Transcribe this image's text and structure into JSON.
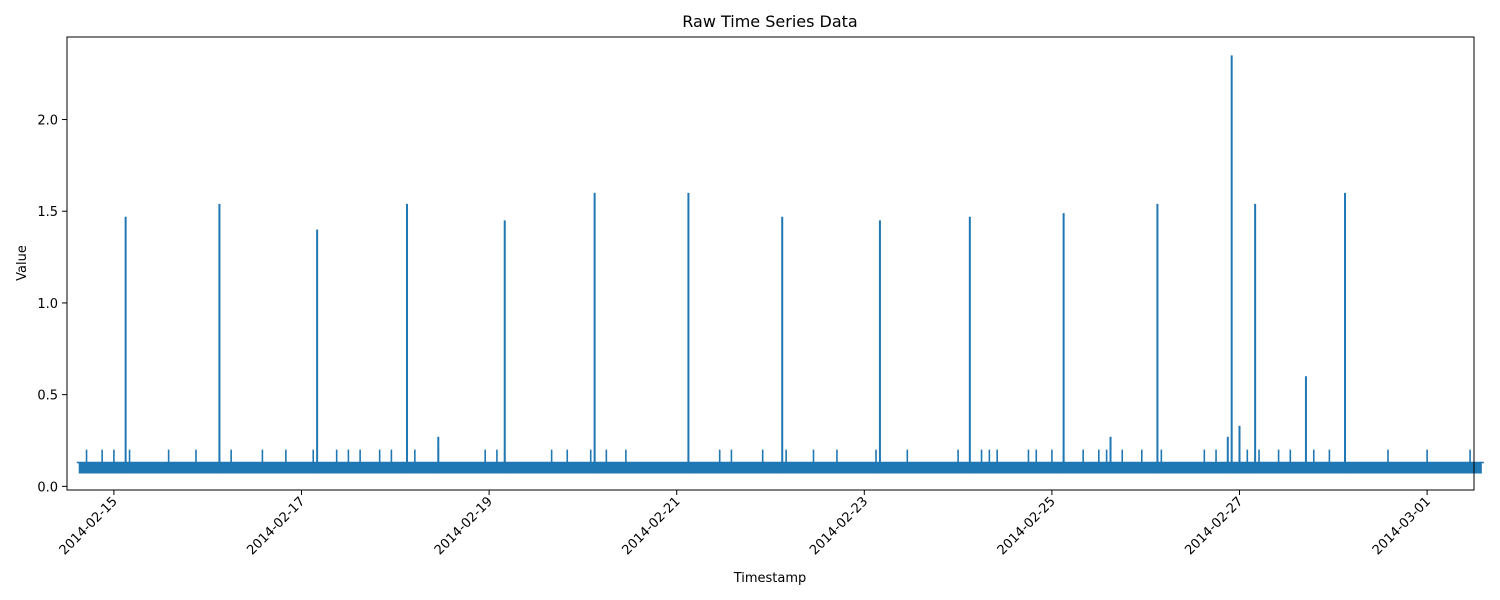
{
  "chart_data": {
    "type": "line",
    "title": "Raw Time Series Data",
    "xlabel": "Timestamp",
    "ylabel": "Value",
    "xlim": [
      "2014-02-14T12:00",
      "2014-03-01T12:00"
    ],
    "ylim": [
      -0.02,
      2.45
    ],
    "x_ticks": [
      "2014-02-15",
      "2014-02-17",
      "2014-02-19",
      "2014-02-21",
      "2014-02-23",
      "2014-02-25",
      "2014-02-27",
      "2014-03-01"
    ],
    "y_ticks": [
      "0.0",
      "0.5",
      "1.0",
      "1.5",
      "2.0"
    ],
    "grid": false,
    "series_color": "#1f77b4",
    "series": [
      {
        "x_range": [
          "2014-02-14T15:00",
          "2014-03-01T14:00"
        ],
        "baseline": 0.13,
        "noise_range": [
          0.07,
          0.13
        ],
        "spikes": [
          {
            "x": "2014-02-15T03:00",
            "y": 1.47
          },
          {
            "x": "2014-02-16T03:00",
            "y": 1.54
          },
          {
            "x": "2014-02-17T04:00",
            "y": 1.4
          },
          {
            "x": "2014-02-18T03:00",
            "y": 1.54
          },
          {
            "x": "2014-02-18T11:00",
            "y": 0.27
          },
          {
            "x": "2014-02-19T04:00",
            "y": 1.45
          },
          {
            "x": "2014-02-20T03:00",
            "y": 1.6
          },
          {
            "x": "2014-02-21T03:00",
            "y": 1.6
          },
          {
            "x": "2014-02-22T03:00",
            "y": 1.47
          },
          {
            "x": "2014-02-23T04:00",
            "y": 1.45
          },
          {
            "x": "2014-02-24T03:00",
            "y": 1.47
          },
          {
            "x": "2014-02-25T03:00",
            "y": 1.49
          },
          {
            "x": "2014-02-25T15:00",
            "y": 0.27
          },
          {
            "x": "2014-02-26T03:00",
            "y": 1.54
          },
          {
            "x": "2014-02-26T21:00",
            "y": 0.27
          },
          {
            "x": "2014-02-26T22:00",
            "y": 2.35
          },
          {
            "x": "2014-02-27T00:00",
            "y": 0.33
          },
          {
            "x": "2014-02-27T04:00",
            "y": 1.54
          },
          {
            "x": "2014-02-27T17:00",
            "y": 0.6
          },
          {
            "x": "2014-02-28T03:00",
            "y": 1.6
          }
        ],
        "small_spike_value": 0.2
      }
    ]
  }
}
